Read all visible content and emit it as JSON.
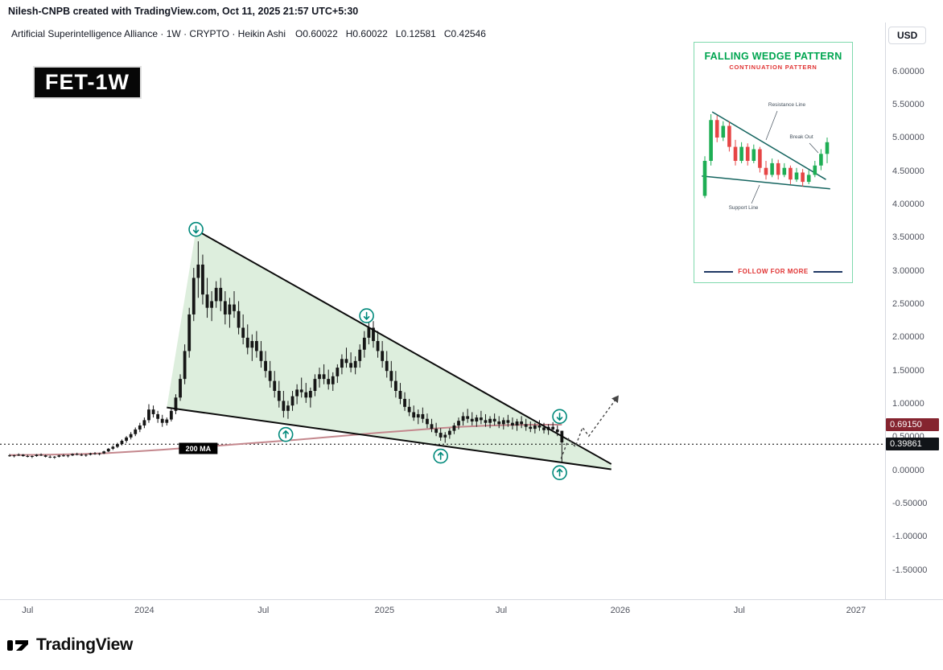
{
  "attribution": "Nilesh-CNPB created with TradingView.com, Oct 11, 2025 21:57 UTC+5:30",
  "symbol_bar": {
    "title": "Artificial Superintelligence Alliance · 1W · CRYPTO · Heikin Ashi",
    "ohlc": {
      "open": "O0.60022",
      "high": "H0.60022",
      "low": "L0.12581",
      "close": "C0.42546"
    }
  },
  "watermark": "FET-1W",
  "axes": {
    "currency": "USD",
    "price_ticks": [
      6,
      5.5,
      5,
      4.5,
      4,
      3.5,
      3,
      2.5,
      2,
      1.5,
      1,
      0.5,
      0,
      -0.5,
      -1,
      -1.5
    ],
    "time_ticks": [
      {
        "label": "Jul",
        "week": 4
      },
      {
        "label": "2024",
        "week": 30
      },
      {
        "label": "Jul",
        "week": 56.5
      },
      {
        "label": "2025",
        "week": 83.5
      },
      {
        "label": "Jul",
        "week": 109.5
      },
      {
        "label": "2026",
        "week": 136
      },
      {
        "label": "Jul",
        "week": 162.5
      },
      {
        "label": "2027",
        "week": 188.5
      }
    ]
  },
  "price_badges": [
    {
      "name": "ma-value",
      "text": "0.69150",
      "bg": "#85242f",
      "price": 0.6915
    },
    {
      "name": "dotted-level",
      "text": "0.39861",
      "bg": "#111418",
      "price": 0.39861
    }
  ],
  "chart_data": {
    "type": "candlestick",
    "style": "heikin-ashi",
    "symbol": "FET",
    "interval": "1W",
    "exchange": "CRYPTO",
    "title": "Artificial Superintelligence Alliance",
    "current_bar": {
      "open": 0.60022,
      "high": 0.60022,
      "low": 0.12581,
      "close": 0.42546
    },
    "ylim": [
      -1.5,
      6.0
    ],
    "x_unit": "week",
    "candle_color": "#161616",
    "candles": [
      [
        0.23,
        0.25,
        0.21,
        0.22
      ],
      [
        0.22,
        0.24,
        0.2,
        0.23
      ],
      [
        0.23,
        0.26,
        0.22,
        0.24
      ],
      [
        0.24,
        0.25,
        0.21,
        0.22
      ],
      [
        0.22,
        0.24,
        0.2,
        0.21
      ],
      [
        0.21,
        0.23,
        0.19,
        0.22
      ],
      [
        0.22,
        0.25,
        0.21,
        0.24
      ],
      [
        0.24,
        0.26,
        0.22,
        0.23
      ],
      [
        0.23,
        0.24,
        0.2,
        0.21
      ],
      [
        0.21,
        0.23,
        0.19,
        0.2
      ],
      [
        0.2,
        0.22,
        0.18,
        0.21
      ],
      [
        0.21,
        0.24,
        0.2,
        0.23
      ],
      [
        0.23,
        0.25,
        0.21,
        0.22
      ],
      [
        0.22,
        0.24,
        0.2,
        0.23
      ],
      [
        0.23,
        0.26,
        0.22,
        0.25
      ],
      [
        0.25,
        0.27,
        0.23,
        0.24
      ],
      [
        0.24,
        0.26,
        0.22,
        0.23
      ],
      [
        0.23,
        0.25,
        0.21,
        0.24
      ],
      [
        0.24,
        0.27,
        0.23,
        0.26
      ],
      [
        0.26,
        0.28,
        0.24,
        0.25
      ],
      [
        0.25,
        0.27,
        0.23,
        0.26
      ],
      [
        0.26,
        0.3,
        0.25,
        0.29
      ],
      [
        0.29,
        0.34,
        0.28,
        0.33
      ],
      [
        0.33,
        0.38,
        0.31,
        0.36
      ],
      [
        0.36,
        0.42,
        0.34,
        0.4
      ],
      [
        0.4,
        0.47,
        0.38,
        0.45
      ],
      [
        0.45,
        0.52,
        0.42,
        0.5
      ],
      [
        0.5,
        0.58,
        0.47,
        0.55
      ],
      [
        0.55,
        0.65,
        0.52,
        0.62
      ],
      [
        0.62,
        0.72,
        0.58,
        0.68
      ],
      [
        0.68,
        0.8,
        0.64,
        0.76
      ],
      [
        0.76,
        1.0,
        0.72,
        0.92
      ],
      [
        0.92,
        0.98,
        0.8,
        0.85
      ],
      [
        0.85,
        0.9,
        0.72,
        0.78
      ],
      [
        0.78,
        0.84,
        0.66,
        0.72
      ],
      [
        0.72,
        0.8,
        0.68,
        0.77
      ],
      [
        0.77,
        0.95,
        0.74,
        0.9
      ],
      [
        0.9,
        1.15,
        0.85,
        1.1
      ],
      [
        1.1,
        1.45,
        1.05,
        1.38
      ],
      [
        1.38,
        1.9,
        1.3,
        1.8
      ],
      [
        1.8,
        2.45,
        1.7,
        2.35
      ],
      [
        2.35,
        3.05,
        2.25,
        2.9
      ],
      [
        2.9,
        3.45,
        2.6,
        3.1
      ],
      [
        3.1,
        3.25,
        2.5,
        2.65
      ],
      [
        2.65,
        2.9,
        2.3,
        2.45
      ],
      [
        2.45,
        2.7,
        2.25,
        2.55
      ],
      [
        2.55,
        2.85,
        2.45,
        2.75
      ],
      [
        2.75,
        2.9,
        2.4,
        2.55
      ],
      [
        2.55,
        2.7,
        2.2,
        2.35
      ],
      [
        2.35,
        2.6,
        2.15,
        2.5
      ],
      [
        2.5,
        2.7,
        2.3,
        2.4
      ],
      [
        2.4,
        2.55,
        2.05,
        2.15
      ],
      [
        2.15,
        2.35,
        1.9,
        2.0
      ],
      [
        2.0,
        2.2,
        1.75,
        1.85
      ],
      [
        1.85,
        2.05,
        1.65,
        1.95
      ],
      [
        1.95,
        2.1,
        1.7,
        1.8
      ],
      [
        1.8,
        1.95,
        1.55,
        1.65
      ],
      [
        1.65,
        1.8,
        1.4,
        1.5
      ],
      [
        1.5,
        1.65,
        1.25,
        1.35
      ],
      [
        1.35,
        1.5,
        1.1,
        1.2
      ],
      [
        1.2,
        1.35,
        0.95,
        1.05
      ],
      [
        1.05,
        1.2,
        0.8,
        0.9
      ],
      [
        0.9,
        1.05,
        0.78,
        0.98
      ],
      [
        0.98,
        1.2,
        0.9,
        1.12
      ],
      [
        1.12,
        1.3,
        1.0,
        1.22
      ],
      [
        1.22,
        1.4,
        1.1,
        1.18
      ],
      [
        1.18,
        1.32,
        1.02,
        1.1
      ],
      [
        1.1,
        1.25,
        0.95,
        1.2
      ],
      [
        1.2,
        1.45,
        1.12,
        1.38
      ],
      [
        1.38,
        1.55,
        1.25,
        1.45
      ],
      [
        1.45,
        1.6,
        1.3,
        1.38
      ],
      [
        1.38,
        1.52,
        1.22,
        1.3
      ],
      [
        1.3,
        1.48,
        1.2,
        1.42
      ],
      [
        1.42,
        1.6,
        1.32,
        1.55
      ],
      [
        1.55,
        1.75,
        1.45,
        1.68
      ],
      [
        1.68,
        1.85,
        1.55,
        1.62
      ],
      [
        1.62,
        1.78,
        1.48,
        1.55
      ],
      [
        1.55,
        1.72,
        1.45,
        1.65
      ],
      [
        1.65,
        1.9,
        1.55,
        1.82
      ],
      [
        1.82,
        2.1,
        1.7,
        2.0
      ],
      [
        2.0,
        2.28,
        1.9,
        2.15
      ],
      [
        2.15,
        2.25,
        1.85,
        1.95
      ],
      [
        1.95,
        2.1,
        1.7,
        1.8
      ],
      [
        1.8,
        1.95,
        1.55,
        1.65
      ],
      [
        1.65,
        1.8,
        1.4,
        1.5
      ],
      [
        1.5,
        1.65,
        1.25,
        1.35
      ],
      [
        1.35,
        1.5,
        1.1,
        1.2
      ],
      [
        1.2,
        1.32,
        1.0,
        1.08
      ],
      [
        1.08,
        1.18,
        0.9,
        0.96
      ],
      [
        0.96,
        1.08,
        0.82,
        0.88
      ],
      [
        0.88,
        0.98,
        0.75,
        0.8
      ],
      [
        0.8,
        0.92,
        0.7,
        0.85
      ],
      [
        0.85,
        0.95,
        0.72,
        0.78
      ],
      [
        0.78,
        0.86,
        0.64,
        0.7
      ],
      [
        0.7,
        0.78,
        0.58,
        0.63
      ],
      [
        0.63,
        0.72,
        0.52,
        0.57
      ],
      [
        0.57,
        0.64,
        0.45,
        0.5
      ],
      [
        0.5,
        0.58,
        0.42,
        0.54
      ],
      [
        0.54,
        0.64,
        0.48,
        0.6
      ],
      [
        0.6,
        0.72,
        0.55,
        0.68
      ],
      [
        0.68,
        0.8,
        0.62,
        0.75
      ],
      [
        0.75,
        0.88,
        0.68,
        0.82
      ],
      [
        0.82,
        0.93,
        0.72,
        0.78
      ],
      [
        0.78,
        0.88,
        0.68,
        0.74
      ],
      [
        0.74,
        0.84,
        0.66,
        0.8
      ],
      [
        0.8,
        0.9,
        0.7,
        0.76
      ],
      [
        0.76,
        0.85,
        0.66,
        0.72
      ],
      [
        0.72,
        0.82,
        0.64,
        0.78
      ],
      [
        0.78,
        0.86,
        0.68,
        0.74
      ],
      [
        0.74,
        0.82,
        0.64,
        0.7
      ],
      [
        0.7,
        0.8,
        0.62,
        0.76
      ],
      [
        0.76,
        0.84,
        0.66,
        0.72
      ],
      [
        0.72,
        0.8,
        0.62,
        0.68
      ],
      [
        0.68,
        0.78,
        0.6,
        0.74
      ],
      [
        0.74,
        0.82,
        0.64,
        0.7
      ],
      [
        0.7,
        0.78,
        0.6,
        0.66
      ],
      [
        0.66,
        0.74,
        0.58,
        0.63
      ],
      [
        0.63,
        0.72,
        0.56,
        0.68
      ],
      [
        0.68,
        0.76,
        0.6,
        0.65
      ],
      [
        0.65,
        0.72,
        0.56,
        0.61
      ],
      [
        0.61,
        0.7,
        0.54,
        0.66
      ],
      [
        0.66,
        0.73,
        0.58,
        0.62
      ],
      [
        0.62,
        0.68,
        0.52,
        0.58
      ],
      [
        0.60022,
        0.60022,
        0.12581,
        0.42546
      ]
    ],
    "ma": {
      "name": "200 MA",
      "color": "#c4878d",
      "current_value": 0.6915,
      "label_at": {
        "week": 42,
        "price": 0.335
      },
      "points": [
        [
          0,
          0.235
        ],
        [
          8,
          0.24
        ],
        [
          16,
          0.25
        ],
        [
          22,
          0.265
        ],
        [
          28,
          0.29
        ],
        [
          34,
          0.315
        ],
        [
          40,
          0.345
        ],
        [
          46,
          0.375
        ],
        [
          52,
          0.405
        ],
        [
          58,
          0.435
        ],
        [
          64,
          0.465
        ],
        [
          70,
          0.5
        ],
        [
          76,
          0.535
        ],
        [
          82,
          0.57
        ],
        [
          88,
          0.6
        ],
        [
          94,
          0.632
        ],
        [
          100,
          0.658
        ],
        [
          106,
          0.677
        ],
        [
          112,
          0.688
        ],
        [
          118,
          0.692
        ],
        [
          123,
          0.6915
        ]
      ]
    },
    "trendlines": [
      {
        "name": "wedge-resistance-line",
        "from": [
          41.5,
          3.62
        ],
        "to": [
          134,
          0.1
        ],
        "color": "#0b0b0b",
        "width": 2
      },
      {
        "name": "wedge-support-line",
        "from": [
          35,
          0.95
        ],
        "to": [
          134,
          0.02
        ],
        "color": "#0b0b0b",
        "width": 2
      }
    ],
    "wedge_fill": {
      "points": [
        [
          35,
          0.95
        ],
        [
          41.5,
          3.62
        ],
        [
          134,
          0.1
        ],
        [
          134,
          0.02
        ]
      ],
      "color": "rgba(121,186,121,0.25)"
    },
    "level_line": {
      "price": 0.39861,
      "style": "dotted",
      "color": "#000000"
    },
    "annotation_color": "#00897b",
    "annotations": [
      {
        "type": "circle-arrow",
        "dir": "down",
        "week": 41.5,
        "price": 3.63
      },
      {
        "type": "circle-arrow",
        "dir": "down",
        "week": 79.5,
        "price": 2.33
      },
      {
        "type": "circle-arrow",
        "dir": "down",
        "week": 122.5,
        "price": 0.815
      },
      {
        "type": "circle-arrow",
        "dir": "up",
        "week": 61.5,
        "price": 0.545
      },
      {
        "type": "circle-arrow",
        "dir": "up",
        "week": 96,
        "price": 0.22
      },
      {
        "type": "circle-arrow",
        "dir": "up",
        "week": 122.5,
        "price": -0.03
      }
    ],
    "projection": {
      "style": "dotted",
      "color": "#444444",
      "points": [
        [
          122.8,
          0.18
        ],
        [
          124.5,
          0.48
        ],
        [
          126,
          0.36
        ],
        [
          127.6,
          0.65
        ],
        [
          129,
          0.52
        ],
        [
          135.5,
          1.12
        ]
      ]
    }
  },
  "inset": {
    "title": "FALLING WEDGE PATTERN",
    "subtitle": "CONTINUATION PATTERN",
    "footer": "FOLLOW FOR MORE",
    "labels": {
      "resistance": "Resistance Line",
      "breakout": "Break Out",
      "support": "Support Line"
    },
    "colors": {
      "title": "#00a550",
      "subtitle": "#e03131",
      "up": "#1eae54",
      "down": "#e64545",
      "trend": "#14645f",
      "label": "#44505c",
      "footer": "#e03131",
      "footer_line": "#1f3864"
    },
    "candles": [
      [
        30,
        64,
        28,
        60
      ],
      [
        60,
        100,
        56,
        95
      ],
      [
        95,
        99,
        76,
        80
      ],
      [
        80,
        94,
        77,
        90
      ],
      [
        90,
        94,
        68,
        72
      ],
      [
        72,
        78,
        56,
        60
      ],
      [
        60,
        76,
        58,
        72
      ],
      [
        72,
        75,
        56,
        60
      ],
      [
        60,
        74,
        58,
        70
      ],
      [
        70,
        72,
        50,
        54
      ],
      [
        54,
        60,
        44,
        48
      ],
      [
        48,
        62,
        46,
        58
      ],
      [
        58,
        61,
        44,
        48
      ],
      [
        48,
        58,
        46,
        54
      ],
      [
        54,
        56,
        40,
        44
      ],
      [
        44,
        54,
        42,
        50
      ],
      [
        50,
        53,
        38,
        42
      ],
      [
        42,
        52,
        40,
        48
      ],
      [
        48,
        60,
        46,
        56
      ],
      [
        56,
        70,
        52,
        66
      ],
      [
        66,
        80,
        58,
        76
      ]
    ],
    "resistance_line": {
      "from": [
        1.2,
        102
      ],
      "to": [
        19.8,
        44
      ]
    },
    "support_line": {
      "from": [
        -0.5,
        47
      ],
      "to": [
        20.5,
        36
      ]
    }
  },
  "logo": {
    "wordmark": "TradingView"
  }
}
